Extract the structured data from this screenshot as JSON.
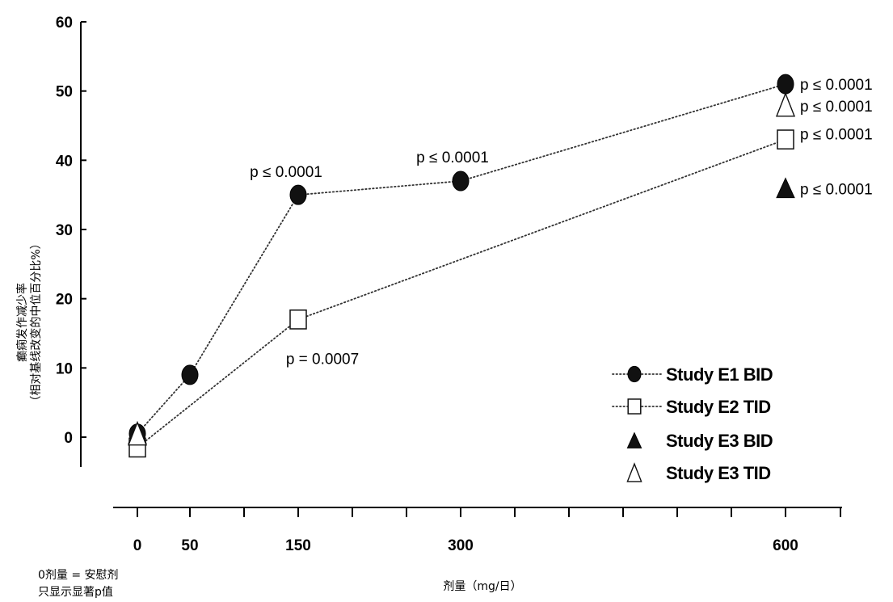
{
  "chart_data": {
    "type": "scatter",
    "title": "",
    "ylabel_lines": [
      "癫痫发作减少率",
      "（相对基线改变的中位百分比%）"
    ],
    "xlabel": "剂量（mg/日）",
    "footnote_lines": [
      "0剂量 = 安慰剂",
      "只显示显著p值"
    ],
    "ylim": [
      0,
      60
    ],
    "yticks": [
      0,
      10,
      20,
      30,
      40,
      50,
      60
    ],
    "x_tick_labels": [
      {
        "value": 0,
        "label": "0"
      },
      {
        "value": 50,
        "label": "50"
      },
      {
        "value": 150,
        "label": "150"
      },
      {
        "value": 300,
        "label": "300"
      },
      {
        "value": 600,
        "label": "600"
      }
    ],
    "x_minor_ticks": [
      100,
      200,
      250,
      350,
      400,
      450,
      500,
      550,
      650
    ],
    "series": [
      {
        "name": "Study E1 BID",
        "marker": "filled-circle",
        "line": "dotted",
        "points": [
          {
            "x": 0,
            "y": 0.5
          },
          {
            "x": 50,
            "y": 9
          },
          {
            "x": 150,
            "y": 35,
            "label": "p ≤ 0.0001"
          },
          {
            "x": 300,
            "y": 37,
            "label": "p ≤ 0.0001"
          },
          {
            "x": 600,
            "y": 51,
            "label": "p ≤ 0.0001"
          }
        ]
      },
      {
        "name": "Study E2 TID",
        "marker": "open-square",
        "line": "dotted",
        "points": [
          {
            "x": 0,
            "y": -1.5
          },
          {
            "x": 150,
            "y": 17,
            "label": "p = 0.0007"
          },
          {
            "x": 600,
            "y": 43,
            "label": "p ≤ 0.0001"
          }
        ]
      },
      {
        "name": "Study E3 BID",
        "marker": "filled-triangle",
        "line": "none",
        "points": [
          {
            "x": 0,
            "y": 0.5
          },
          {
            "x": 600,
            "y": 36,
            "label": "p ≤ 0.0001"
          }
        ]
      },
      {
        "name": "Study E3 TID",
        "marker": "open-triangle",
        "line": "none",
        "points": [
          {
            "x": 0,
            "y": 0.5
          },
          {
            "x": 600,
            "y": 48,
            "label": "p ≤ 0.0001"
          }
        ]
      }
    ],
    "legend": "bottom-right",
    "grid": false
  }
}
